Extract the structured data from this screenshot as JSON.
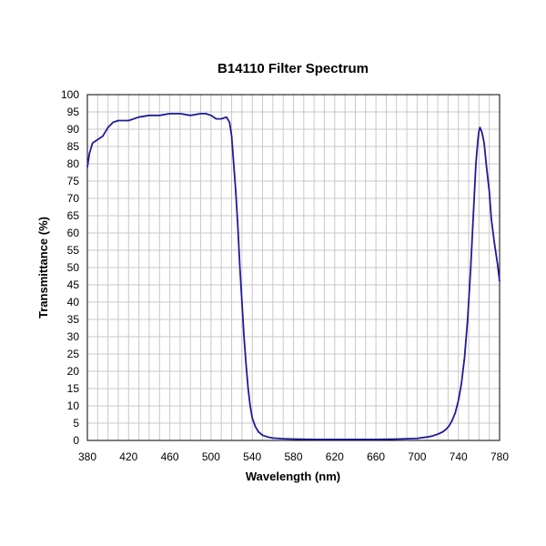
{
  "chart_data": {
    "type": "line",
    "title": "B14110 Filter  Spectrum",
    "xlabel": "Wavelength (nm)",
    "ylabel": "Transmittance (%)",
    "xlim": [
      380,
      780
    ],
    "ylim": [
      0,
      100
    ],
    "x_ticks": [
      380,
      420,
      460,
      500,
      540,
      580,
      620,
      660,
      700,
      740,
      780
    ],
    "y_ticks": [
      0,
      5,
      10,
      15,
      20,
      25,
      30,
      35,
      40,
      45,
      50,
      55,
      60,
      65,
      70,
      75,
      80,
      85,
      90,
      95,
      100
    ],
    "grid": true,
    "line_color": "#1f1a9c",
    "series": [
      {
        "x": [
          380,
          382,
          385,
          390,
          395,
          400,
          405,
          410,
          420,
          430,
          440,
          450,
          460,
          470,
          480,
          490,
          495,
          500,
          505,
          510,
          515,
          518,
          520,
          522,
          524,
          526,
          528,
          530,
          532,
          534,
          536,
          538,
          540,
          543,
          546,
          550,
          555,
          560,
          570,
          580,
          600,
          620,
          640,
          660,
          680,
          700,
          710,
          715,
          720,
          725,
          728,
          731,
          734,
          737,
          740,
          743,
          746,
          749,
          752,
          755,
          757,
          759,
          760,
          761,
          763,
          765,
          767,
          770,
          772,
          775,
          778,
          780
        ],
        "y": [
          79,
          83,
          86,
          87,
          88,
          90.5,
          92,
          92.5,
          92.5,
          93.5,
          94,
          94,
          94.5,
          94.5,
          94,
          94.5,
          94.5,
          94,
          93,
          93,
          93.5,
          92,
          88,
          80,
          72,
          62,
          50,
          40,
          30,
          22,
          15,
          10,
          6.5,
          4,
          2.5,
          1.5,
          1,
          0.7,
          0.5,
          0.4,
          0.3,
          0.3,
          0.3,
          0.3,
          0.4,
          0.6,
          1,
          1.3,
          1.8,
          2.5,
          3.2,
          4.2,
          5.8,
          8,
          11.5,
          16.5,
          24,
          35,
          50,
          68,
          80,
          87,
          89.5,
          90.5,
          89,
          86,
          80,
          72,
          64,
          57,
          51,
          46
        ]
      }
    ]
  }
}
